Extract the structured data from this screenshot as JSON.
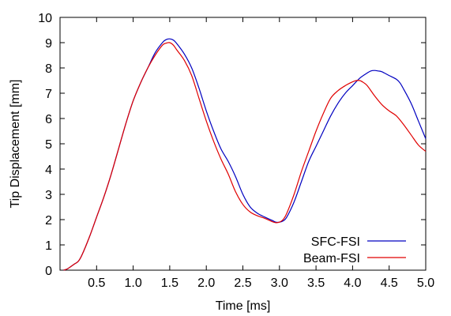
{
  "chart_data": {
    "type": "line",
    "title": "",
    "xlabel": "Time [ms]",
    "ylabel": "Tip Displacement [mm]",
    "xlim": [
      0,
      5.0
    ],
    "ylim": [
      0,
      10
    ],
    "x_ticks": [
      0.5,
      1.0,
      1.5,
      2.0,
      2.5,
      3.0,
      3.5,
      4.0,
      4.5,
      5.0
    ],
    "x_tick_labels": [
      "0.5",
      "1.0",
      "1.5",
      "2.0",
      "2.5",
      "3.0",
      "3.5",
      "4.0",
      "4.5",
      "5.0"
    ],
    "y_ticks": [
      0,
      1,
      2,
      3,
      4,
      5,
      6,
      7,
      8,
      9,
      10
    ],
    "y_tick_labels": [
      "0",
      "1",
      "2",
      "3",
      "4",
      "5",
      "6",
      "7",
      "8",
      "9",
      "10"
    ],
    "grid": false,
    "legend_position": "bottom-right",
    "series": [
      {
        "name": "SFC-FSI",
        "color": "#0000c0",
        "x": [
          0.05,
          0.1,
          0.15,
          0.2,
          0.25,
          0.3,
          0.4,
          0.5,
          0.6,
          0.7,
          0.8,
          0.9,
          1.0,
          1.1,
          1.2,
          1.3,
          1.4,
          1.45,
          1.5,
          1.55,
          1.6,
          1.7,
          1.8,
          1.9,
          2.0,
          2.1,
          2.2,
          2.3,
          2.4,
          2.5,
          2.6,
          2.7,
          2.8,
          2.9,
          2.95,
          3.0,
          3.05,
          3.1,
          3.2,
          3.3,
          3.4,
          3.5,
          3.6,
          3.7,
          3.8,
          3.9,
          4.0,
          4.1,
          4.2,
          4.25,
          4.3,
          4.35,
          4.4,
          4.5,
          4.6,
          4.65,
          4.7,
          4.8,
          4.9,
          5.0
        ],
        "y": [
          0.0,
          0.05,
          0.15,
          0.25,
          0.35,
          0.6,
          1.3,
          2.1,
          2.9,
          3.8,
          4.8,
          5.8,
          6.7,
          7.4,
          8.0,
          8.6,
          9.0,
          9.12,
          9.15,
          9.1,
          8.95,
          8.55,
          8.0,
          7.2,
          6.3,
          5.5,
          4.8,
          4.3,
          3.7,
          3.0,
          2.5,
          2.25,
          2.1,
          1.97,
          1.9,
          1.9,
          1.95,
          2.1,
          2.7,
          3.5,
          4.3,
          4.9,
          5.5,
          6.1,
          6.6,
          7.0,
          7.3,
          7.6,
          7.8,
          7.88,
          7.9,
          7.88,
          7.85,
          7.7,
          7.55,
          7.4,
          7.15,
          6.6,
          5.9,
          5.2
        ]
      },
      {
        "name": "Beam-FSI",
        "color": "#e00000",
        "x": [
          0.05,
          0.1,
          0.15,
          0.2,
          0.25,
          0.3,
          0.4,
          0.5,
          0.6,
          0.7,
          0.8,
          0.9,
          1.0,
          1.1,
          1.2,
          1.3,
          1.4,
          1.45,
          1.5,
          1.55,
          1.6,
          1.7,
          1.8,
          1.9,
          2.0,
          2.1,
          2.2,
          2.3,
          2.4,
          2.5,
          2.6,
          2.7,
          2.8,
          2.9,
          2.95,
          3.0,
          3.05,
          3.1,
          3.2,
          3.3,
          3.4,
          3.5,
          3.6,
          3.7,
          3.8,
          3.9,
          4.0,
          4.05,
          4.1,
          4.15,
          4.2,
          4.3,
          4.4,
          4.5,
          4.6,
          4.7,
          4.8,
          4.9,
          5.0
        ],
        "y": [
          0.0,
          0.05,
          0.15,
          0.25,
          0.35,
          0.6,
          1.3,
          2.1,
          2.9,
          3.8,
          4.8,
          5.8,
          6.7,
          7.4,
          8.0,
          8.5,
          8.9,
          8.98,
          9.0,
          8.9,
          8.7,
          8.3,
          7.7,
          6.8,
          5.9,
          5.1,
          4.4,
          3.8,
          3.1,
          2.6,
          2.3,
          2.15,
          2.05,
          1.92,
          1.88,
          1.9,
          2.0,
          2.25,
          3.0,
          3.9,
          4.7,
          5.5,
          6.2,
          6.8,
          7.1,
          7.3,
          7.45,
          7.5,
          7.5,
          7.42,
          7.3,
          6.9,
          6.55,
          6.3,
          6.1,
          5.75,
          5.35,
          4.95,
          4.7
        ]
      }
    ]
  }
}
